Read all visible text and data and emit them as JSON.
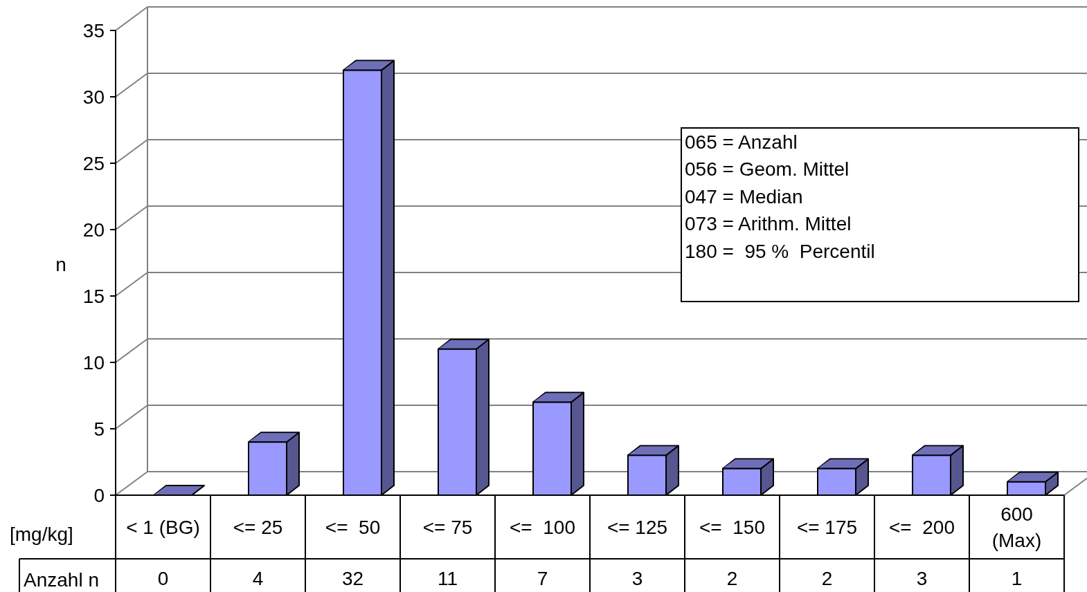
{
  "chart_data": {
    "type": "bar",
    "ylabel": "n",
    "xlabel": "[mg/kg]",
    "categories": [
      "< 1 (BG)",
      "<= 25",
      "<=  50",
      "<= 75",
      "<=  100",
      "<= 125",
      "<=  150",
      "<= 175",
      "<=  200",
      "600 (Max)"
    ],
    "series": [
      {
        "color": "#9999ff",
        "values": [
          0,
          4,
          32,
          11,
          7,
          3,
          2,
          2,
          3,
          1
        ]
      }
    ],
    "ylim": [
      0,
      35
    ],
    "yticks": [
      0,
      5,
      10,
      15,
      20,
      25,
      30,
      35
    ],
    "grid": "y",
    "data_labels": true,
    "annotations": [
      "065 = Anzahl",
      "056 = Geom. Mittel",
      "047 = Median",
      "073 = Arithm. Mittel",
      "180 =  95 %  Percentil",
      "Anzahl n"
    ]
  }
}
